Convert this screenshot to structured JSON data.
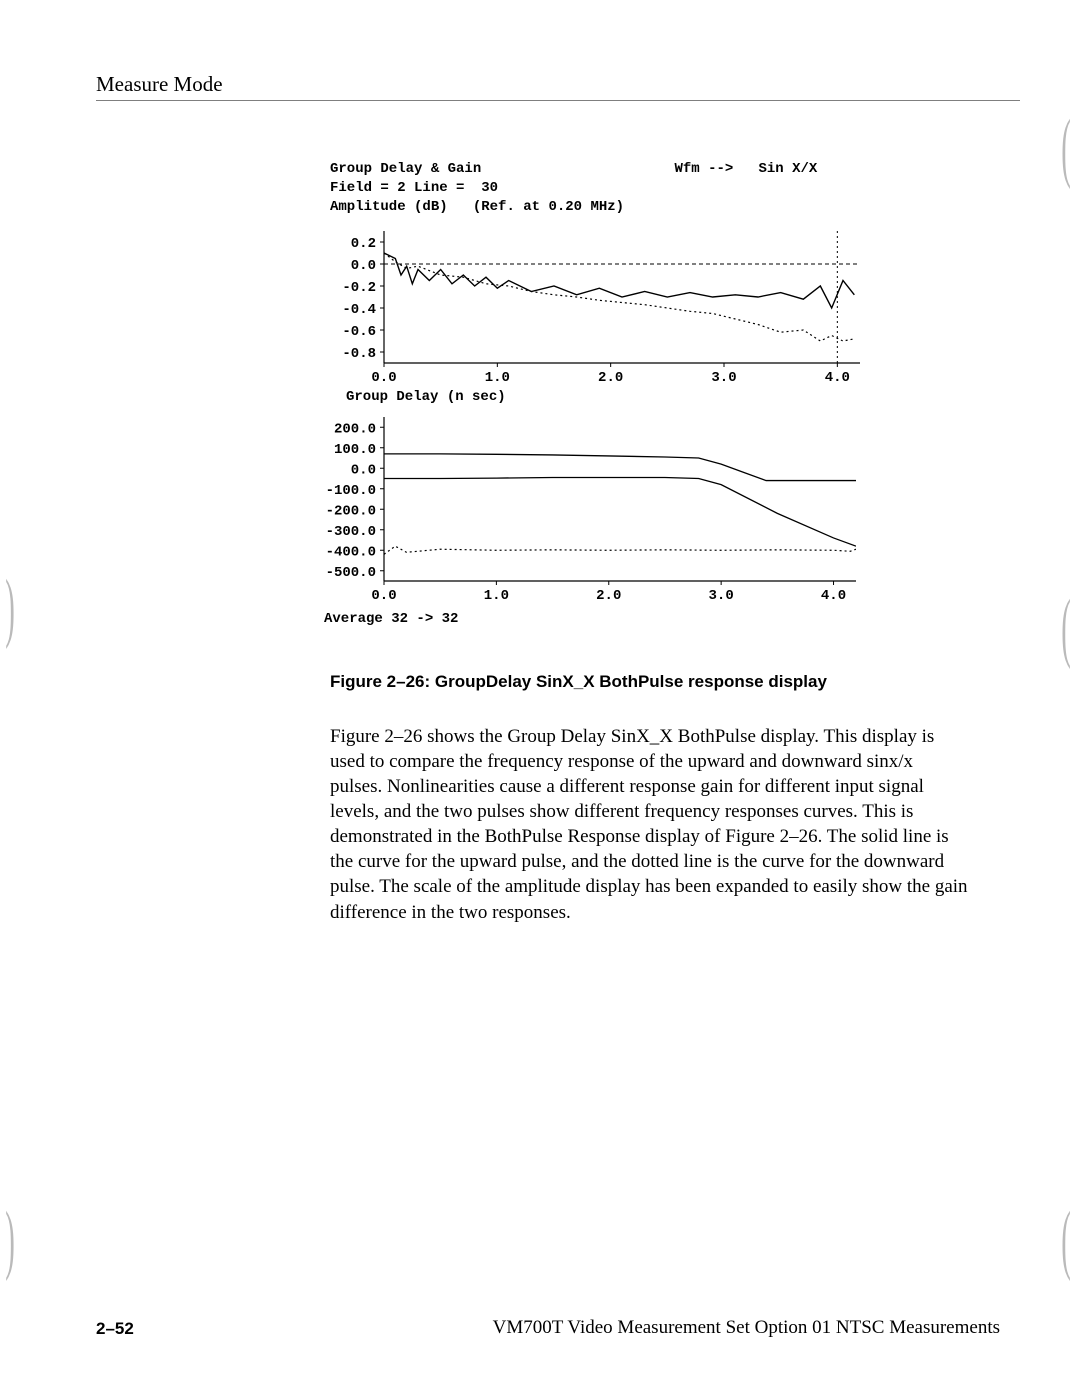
{
  "header": {
    "section_title": "Measure Mode"
  },
  "chart_meta": {
    "title": "Group Delay & Gain",
    "wfm_label": "Wfm -->",
    "wfm_value": "Sin X/X",
    "field_line": "Field = 2 Line =  30",
    "amplitude_label": "Amplitude (dB)",
    "ref_label": "(Ref. at 0.20 MHz)"
  },
  "chart1": {
    "type": "line",
    "ylabel": "Amplitude (dB)",
    "xlim": [
      0.0,
      4.2
    ],
    "ylim": [
      -0.9,
      0.3
    ],
    "yticks": [
      0.2,
      0.0,
      -0.2,
      -0.4,
      -0.6,
      -0.8
    ],
    "xticks": [
      0.0,
      1.0,
      2.0,
      3.0,
      4.0
    ],
    "grid_color": "#000000",
    "background_color": "#ffffff",
    "line_color": "#000000",
    "baseline_y": 0.0,
    "solid_series": [
      [
        0.0,
        0.1
      ],
      [
        0.1,
        0.05
      ],
      [
        0.15,
        -0.1
      ],
      [
        0.2,
        -0.02
      ],
      [
        0.25,
        -0.18
      ],
      [
        0.3,
        -0.05
      ],
      [
        0.4,
        -0.15
      ],
      [
        0.5,
        -0.05
      ],
      [
        0.6,
        -0.18
      ],
      [
        0.7,
        -0.1
      ],
      [
        0.8,
        -0.2
      ],
      [
        0.9,
        -0.12
      ],
      [
        1.0,
        -0.22
      ],
      [
        1.1,
        -0.15
      ],
      [
        1.3,
        -0.25
      ],
      [
        1.5,
        -0.2
      ],
      [
        1.7,
        -0.28
      ],
      [
        1.9,
        -0.22
      ],
      [
        2.1,
        -0.3
      ],
      [
        2.3,
        -0.25
      ],
      [
        2.5,
        -0.3
      ],
      [
        2.7,
        -0.26
      ],
      [
        2.9,
        -0.3
      ],
      [
        3.1,
        -0.28
      ],
      [
        3.3,
        -0.3
      ],
      [
        3.5,
        -0.26
      ],
      [
        3.7,
        -0.32
      ],
      [
        3.85,
        -0.2
      ],
      [
        3.95,
        -0.4
      ],
      [
        4.05,
        -0.15
      ],
      [
        4.15,
        -0.28
      ]
    ],
    "dotted_series": [
      [
        0.0,
        0.1
      ],
      [
        0.1,
        0.02
      ],
      [
        0.2,
        -0.04
      ],
      [
        0.3,
        -0.02
      ],
      [
        0.5,
        -0.1
      ],
      [
        0.7,
        -0.12
      ],
      [
        0.9,
        -0.18
      ],
      [
        1.1,
        -0.2
      ],
      [
        1.3,
        -0.25
      ],
      [
        1.5,
        -0.28
      ],
      [
        1.7,
        -0.3
      ],
      [
        1.9,
        -0.33
      ],
      [
        2.1,
        -0.35
      ],
      [
        2.3,
        -0.37
      ],
      [
        2.5,
        -0.4
      ],
      [
        2.7,
        -0.43
      ],
      [
        2.9,
        -0.45
      ],
      [
        3.1,
        -0.5
      ],
      [
        3.3,
        -0.55
      ],
      [
        3.5,
        -0.62
      ],
      [
        3.7,
        -0.6
      ],
      [
        3.85,
        -0.7
      ],
      [
        3.95,
        -0.65
      ],
      [
        4.05,
        -0.7
      ],
      [
        4.15,
        -0.68
      ]
    ]
  },
  "chart2_label": "Group Delay (n sec)",
  "chart2": {
    "type": "line",
    "xlim": [
      0.0,
      4.2
    ],
    "ylim": [
      -550,
      250
    ],
    "yticks": [
      200.0,
      100.0,
      0.0,
      -100.0,
      -200.0,
      -300.0,
      -400.0,
      -500.0
    ],
    "xticks": [
      0.0,
      1.0,
      2.0,
      3.0,
      4.0
    ],
    "grid_color": "#000000",
    "background_color": "#ffffff",
    "line_color": "#000000",
    "solid_upper": [
      [
        0.0,
        70
      ],
      [
        0.5,
        70
      ],
      [
        1.0,
        68
      ],
      [
        1.5,
        65
      ],
      [
        2.0,
        60
      ],
      [
        2.5,
        55
      ],
      [
        2.8,
        50
      ],
      [
        3.0,
        20
      ],
      [
        3.2,
        -20
      ],
      [
        3.4,
        -60
      ],
      [
        4.2,
        -60
      ]
    ],
    "solid_lower": [
      [
        0.0,
        -50
      ],
      [
        0.5,
        -50
      ],
      [
        1.0,
        -48
      ],
      [
        1.5,
        -45
      ],
      [
        2.0,
        -45
      ],
      [
        2.5,
        -45
      ],
      [
        2.8,
        -50
      ],
      [
        3.0,
        -80
      ],
      [
        3.5,
        -220
      ],
      [
        4.0,
        -340
      ],
      [
        4.2,
        -380
      ]
    ],
    "dotted_series": [
      [
        0.0,
        -420
      ],
      [
        0.1,
        -380
      ],
      [
        0.2,
        -410
      ],
      [
        0.5,
        -395
      ],
      [
        1.0,
        -400
      ],
      [
        1.5,
        -398
      ],
      [
        2.0,
        -400
      ],
      [
        2.5,
        -398
      ],
      [
        3.0,
        -400
      ],
      [
        3.5,
        -398
      ],
      [
        4.0,
        -400
      ],
      [
        4.15,
        -405
      ],
      [
        4.2,
        -395
      ]
    ]
  },
  "average_line": "Average   32 ->   32",
  "figure": {
    "caption": "Figure 2–26: GroupDelay SinX_X BothPulse response display"
  },
  "body": {
    "paragraph": "Figure 2–26 shows the Group Delay SinX_X BothPulse display. This display is used to compare the frequency response of the upward and downward sinx/x pulses. Nonlinearities cause a different response gain for different input signal levels, and the two pulses show different frequency responses curves. This is demonstrated in the BothPulse Response display of Figure 2–26. The solid line is the curve for the upward pulse, and the dotted line is the curve for the downward pulse. The scale of the amplitude display has been expanded to easily show the gain difference in the two responses."
  },
  "footer": {
    "page_num": "2–52",
    "doc_title": "VM700T Video Measurement Set Option 01 NTSC Measurements"
  }
}
